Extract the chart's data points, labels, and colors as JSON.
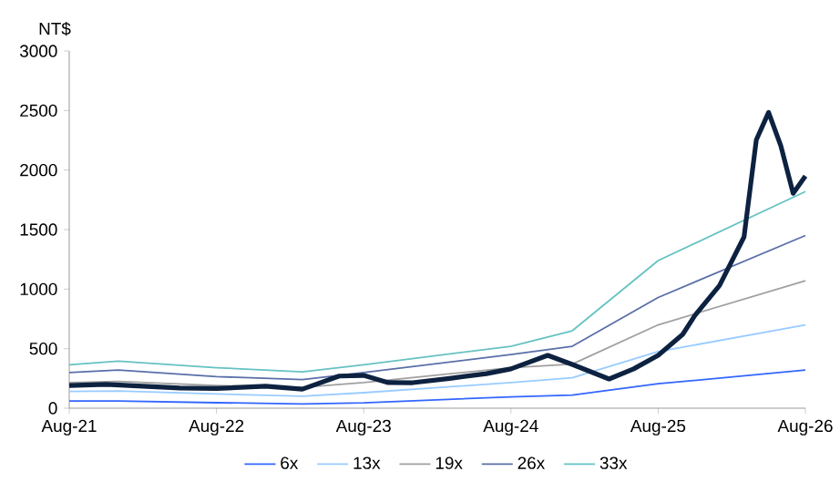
{
  "chart_data": {
    "type": "line",
    "ylabel": "NT$",
    "xlim": [
      "2021-08",
      "2026-08"
    ],
    "ylim": [
      0,
      3000
    ],
    "xticks": [
      {
        "value": "2021-08",
        "label": "Aug-21"
      },
      {
        "value": "2022-08",
        "label": "Aug-22"
      },
      {
        "value": "2023-08",
        "label": "Aug-23"
      },
      {
        "value": "2024-08",
        "label": "Aug-24"
      },
      {
        "value": "2025-08",
        "label": "Aug-25"
      },
      {
        "value": "2026-08",
        "label": "Aug-26"
      }
    ],
    "yticks": [
      0,
      500,
      1000,
      1500,
      2000,
      2500,
      3000
    ],
    "legend": "bottom",
    "grid": false,
    "series": [
      {
        "name": "6x",
        "color": "#3366ff",
        "x": [
          "2021-08",
          "2021-12",
          "2022-08",
          "2023-03",
          "2023-08",
          "2024-08",
          "2025-01",
          "2025-08",
          "2026-08"
        ],
        "values": [
          61,
          60,
          46,
          36,
          45,
          95,
          110,
          205,
          320
        ]
      },
      {
        "name": "13x",
        "color": "#99ccff",
        "x": [
          "2021-08",
          "2021-12",
          "2022-08",
          "2023-03",
          "2023-08",
          "2024-08",
          "2025-01",
          "2025-08",
          "2026-08"
        ],
        "values": [
          140,
          145,
          120,
          100,
          130,
          215,
          255,
          475,
          700
        ]
      },
      {
        "name": "19x",
        "color": "#a0a0a0",
        "x": [
          "2021-08",
          "2021-12",
          "2022-08",
          "2023-03",
          "2023-08",
          "2024-08",
          "2025-01",
          "2025-08",
          "2026-08"
        ],
        "values": [
          215,
          225,
          190,
          175,
          215,
          340,
          370,
          700,
          1070
        ]
      },
      {
        "name": "26x",
        "color": "#5a6fa8",
        "x": [
          "2021-08",
          "2021-12",
          "2022-08",
          "2023-03",
          "2023-08",
          "2024-08",
          "2025-01",
          "2025-08",
          "2026-08"
        ],
        "values": [
          300,
          320,
          265,
          240,
          300,
          450,
          520,
          930,
          1450
        ]
      },
      {
        "name": "33x",
        "color": "#66c2c2",
        "x": [
          "2021-08",
          "2021-12",
          "2022-08",
          "2023-03",
          "2023-08",
          "2024-08",
          "2025-01",
          "2025-08",
          "2026-08"
        ],
        "values": [
          365,
          395,
          340,
          305,
          365,
          520,
          650,
          1240,
          1820
        ]
      },
      {
        "color": "#0d2240",
        "x": [
          "2021-08",
          "2021-11",
          "2022-02",
          "2022-05",
          "2022-08",
          "2022-12",
          "2023-03",
          "2023-06",
          "2023-08",
          "2023-10",
          "2023-12",
          "2024-03",
          "2024-06",
          "2024-08",
          "2024-11",
          "2025-01",
          "2025-04",
          "2025-06",
          "2025-08",
          "2025-10",
          "2025-11",
          "2026-01",
          "2026-03",
          "2026-04",
          "2026-05",
          "2026-06",
          "2026-07",
          "2026-08"
        ],
        "values": [
          190,
          200,
          185,
          170,
          165,
          185,
          160,
          270,
          275,
          215,
          214,
          250,
          290,
          330,
          444,
          367,
          245,
          330,
          444,
          620,
          780,
          1030,
          1439,
          2254,
          2484,
          2203,
          1805,
          1950
        ]
      }
    ]
  }
}
